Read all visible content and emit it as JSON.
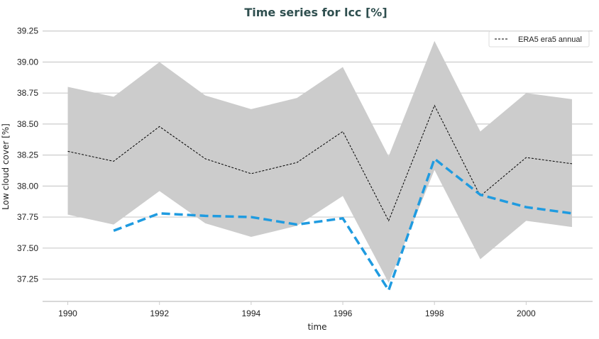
{
  "chart_data": {
    "type": "line",
    "title": "Time series for lcc [%]",
    "xlabel": "time",
    "ylabel": "Low cloud cover [%]",
    "xlim": [
      1989.45,
      2001.45
    ],
    "ylim": [
      37.07,
      39.3
    ],
    "x_ticks": [
      "1990",
      "1992",
      "1994",
      "1996",
      "1998",
      "2000"
    ],
    "y_ticks": [
      "37.25",
      "37.50",
      "37.75",
      "38.00",
      "38.25",
      "38.50",
      "38.75",
      "39.00",
      "39.25"
    ],
    "grid": "horizontal",
    "legend_position": "top-right",
    "x": [
      1990,
      1991,
      1992,
      1993,
      1994,
      1995,
      1996,
      1997,
      1998,
      1999,
      2000,
      2001
    ],
    "series": [
      {
        "name": "ERA5 era5 annual",
        "style": "dashed-thin",
        "color": "#000000",
        "values": [
          38.28,
          38.2,
          38.48,
          38.22,
          38.1,
          38.19,
          38.44,
          37.72,
          38.65,
          37.92,
          38.23,
          38.18
        ]
      },
      {
        "style": "dashed-thick",
        "color": "#1f9be0",
        "values": [
          null,
          37.64,
          37.78,
          37.76,
          37.75,
          37.69,
          37.74,
          37.16,
          38.22,
          37.93,
          37.83,
          37.78
        ]
      }
    ],
    "band": {
      "color": "#cccccc",
      "upper": [
        38.8,
        38.72,
        39.0,
        38.73,
        38.62,
        38.71,
        38.96,
        38.24,
        39.17,
        38.44,
        38.75,
        38.7
      ],
      "lower": [
        37.77,
        37.69,
        37.96,
        37.7,
        37.59,
        37.68,
        37.92,
        37.22,
        38.13,
        37.41,
        37.72,
        37.67
      ]
    }
  }
}
